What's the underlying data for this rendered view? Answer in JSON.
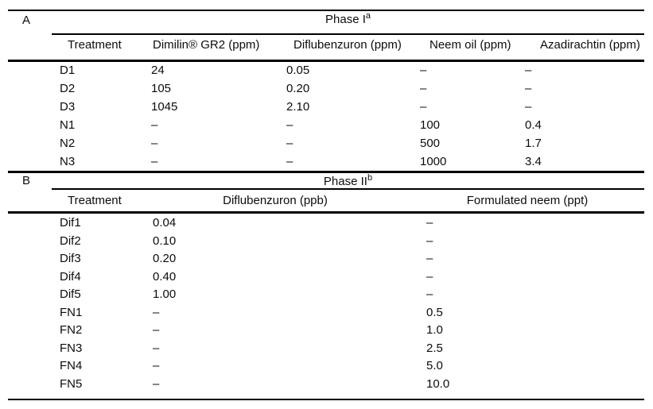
{
  "table": {
    "sectionA": {
      "label": "A",
      "phase_title": "Phase I",
      "phase_superscript": "a",
      "columns": [
        "Treatment",
        "Dimilin® GR2 (ppm)",
        "Diflubenzuron (ppm)",
        "Neem oil (ppm)",
        "Azadirachtin (ppm)"
      ],
      "rows": [
        [
          "D1",
          "24",
          "0.05",
          "–",
          "–"
        ],
        [
          "D2",
          "105",
          "0.20",
          "–",
          "–"
        ],
        [
          "D3",
          "1045",
          "2.10",
          "–",
          "–"
        ],
        [
          "N1",
          "–",
          "–",
          "100",
          "0.4"
        ],
        [
          "N2",
          "–",
          "–",
          "500",
          "1.7"
        ],
        [
          "N3",
          "–",
          "–",
          "1000",
          "3.4"
        ]
      ]
    },
    "sectionB": {
      "label": "B",
      "phase_title": "Phase II",
      "phase_superscript": "b",
      "columns": [
        "Treatment",
        "Diflubenzuron (ppb)",
        "Formulated neem (ppt)"
      ],
      "rows": [
        [
          "Dif1",
          "0.04",
          "–"
        ],
        [
          "Dif2",
          "0.10",
          "–"
        ],
        [
          "Dif3",
          "0.20",
          "–"
        ],
        [
          "Dif4",
          "0.40",
          "–"
        ],
        [
          "Dif5",
          "1.00",
          "–"
        ],
        [
          "FN1",
          "–",
          "0.5"
        ],
        [
          "FN2",
          "–",
          "1.0"
        ],
        [
          "FN3",
          "–",
          "2.5"
        ],
        [
          "FN4",
          "–",
          "5.0"
        ],
        [
          "FN5",
          "–",
          "10.0"
        ]
      ]
    }
  },
  "colors": {
    "background": "#ffffff",
    "text": "#0c0c0c",
    "rule": "#000000"
  }
}
